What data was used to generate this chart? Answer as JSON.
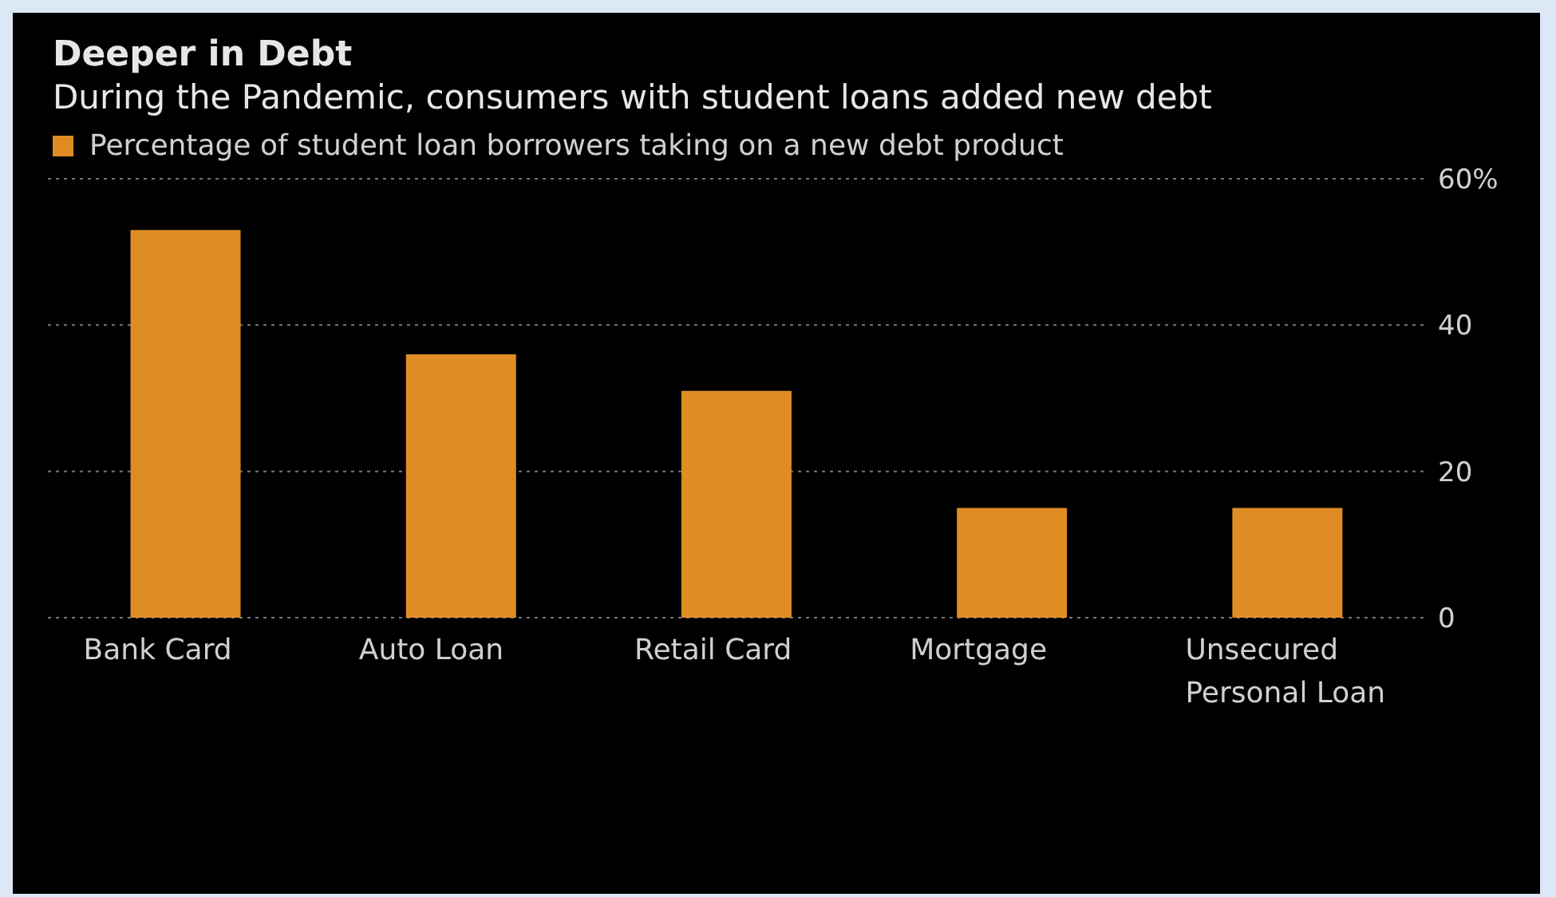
{
  "chart_data": {
    "type": "bar",
    "title": "Deeper in Debt",
    "subtitle": "During the Pandemic, consumers with student loans added new debt",
    "categories": [
      "Bank Card",
      "Auto Loan",
      "Retail Card",
      "Mortgage",
      "Unsecured Personal Loan"
    ],
    "series": [
      {
        "name": "Percentage of student loan borrowers taking on a new debt product",
        "color": "#e08c25",
        "values": [
          53,
          36,
          31,
          15,
          15
        ]
      }
    ],
    "ylim": [
      0,
      60
    ],
    "yticks": [
      0,
      20,
      40,
      {
        "value": 60,
        "label": "60%"
      }
    ],
    "grid": "y",
    "legend": "top left"
  }
}
